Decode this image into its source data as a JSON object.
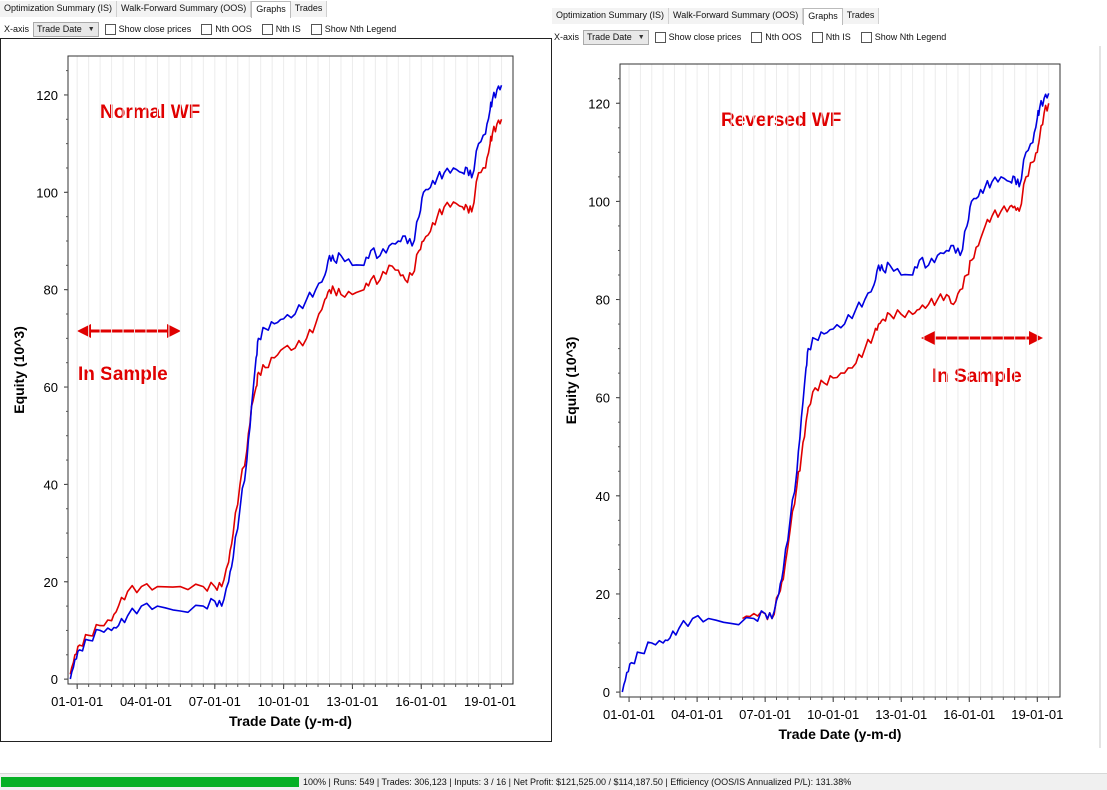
{
  "left": {
    "tabs": [
      "Optimization Summary (IS)",
      "Walk-Forward Summary (OOS)",
      "Graphs",
      "Trades"
    ],
    "active_tab": "Graphs",
    "toolbar": {
      "xaxis_label": "X-axis",
      "xaxis_value": "Trade Date",
      "show_close_prices": "Show close prices",
      "nth_oos": "Nth OOS",
      "nth_is": "Nth IS",
      "show_nth_legend": "Show Nth Legend"
    },
    "annotation_title": "Normal WF",
    "annotation_sample": "In Sample"
  },
  "right": {
    "tabs": [
      "Optimization Summary (IS)",
      "Walk-Forward Summary (OOS)",
      "Graphs",
      "Trades"
    ],
    "active_tab": "Graphs",
    "toolbar": {
      "xaxis_label": "X-axis",
      "xaxis_value": "Trade Date",
      "show_close_prices": "Show close prices",
      "nth_oos": "Nth OOS",
      "nth_is": "Nth IS",
      "show_nth_legend": "Show Nth Legend"
    },
    "annotation_title": "Reversed WF",
    "annotation_sample": "In Sample"
  },
  "status": {
    "progress": 1.0,
    "text": "100%  | Runs: 549 | Trades: 306,123 | Inputs: 3 / 16 | Net Profit: $121,525.00 / $114,187.50 | Efficiency (OOS/IS Annualized P/L): 131.38%"
  },
  "colors": {
    "series_blue": "#0000e0",
    "series_red": "#e00000",
    "annotation": "#e00000",
    "progress": "#06b025"
  },
  "chart_data": [
    {
      "type": "line",
      "xlabel": "Trade Date (y-m-d)",
      "ylabel": "Equity (10^3)",
      "xticks": [
        "01-01-01",
        "04-01-01",
        "07-01-01",
        "10-01-01",
        "13-01-01",
        "16-01-01",
        "19-01-01"
      ],
      "yticks": [
        0,
        20,
        40,
        60,
        80,
        100,
        120
      ],
      "xlim": [
        2000.6,
        2020.0
      ],
      "ylim": [
        -1,
        128
      ],
      "grid": "vertical",
      "series": [
        {
          "color": "#0000e0",
          "x": [
            2000.7,
            2000.9,
            2001.1,
            2001.5,
            2002.0,
            2002.5,
            2002.8,
            2003.2,
            2003.8,
            2004.5,
            2005.5,
            2006.5,
            2007.0,
            2007.3,
            2007.6,
            2007.8,
            2008.1,
            2008.4,
            2008.6,
            2008.8,
            2008.9,
            2009.2,
            2009.6,
            2010.0,
            2010.5,
            2011.0,
            2011.4,
            2011.8,
            2012.0,
            2012.2,
            2012.5,
            2013.0,
            2013.5,
            2013.8,
            2014.2,
            2014.6,
            2015.0,
            2015.3,
            2015.6,
            2015.9,
            2016.1,
            2016.4,
            2016.7,
            2017.0,
            2017.4,
            2017.8,
            2018.0,
            2018.2,
            2018.5,
            2018.8,
            2019.0,
            2019.1,
            2019.3,
            2019.5
          ],
          "y": [
            0,
            4,
            6,
            8,
            10,
            10,
            11,
            13,
            15,
            15,
            14,
            15,
            16,
            15,
            20,
            25,
            35,
            45,
            56,
            66,
            70,
            72,
            73,
            74,
            75,
            78,
            80,
            83,
            87,
            86,
            87,
            85,
            85,
            88,
            87,
            89,
            90,
            91,
            89,
            95,
            100,
            101,
            103,
            104,
            105,
            104,
            105,
            103,
            110,
            112,
            117,
            119,
            121,
            122
          ]
        },
        {
          "color": "#e00000",
          "x": [
            2000.7,
            2000.9,
            2001.1,
            2001.5,
            2002.0,
            2002.5,
            2002.8,
            2003.2,
            2003.8,
            2004.5,
            2005.5,
            2006.5,
            2007.0,
            2007.3,
            2007.6,
            2007.8,
            2008.1,
            2008.4,
            2008.6,
            2008.8,
            2008.9,
            2009.2,
            2009.6,
            2010.0,
            2010.5,
            2011.0,
            2011.4,
            2011.8,
            2012.0,
            2012.2,
            2012.5,
            2013.0,
            2013.5,
            2013.8,
            2014.2,
            2014.6,
            2015.0,
            2015.3,
            2015.6,
            2015.9,
            2016.1,
            2016.4,
            2016.7,
            2017.0,
            2017.4,
            2017.8,
            2018.0,
            2018.2,
            2018.5,
            2018.8,
            2019.0,
            2019.1,
            2019.3,
            2019.5
          ],
          "y": [
            1,
            5,
            7,
            9,
            11,
            12,
            15,
            18,
            19,
            19,
            19,
            19,
            19,
            19,
            24,
            30,
            40,
            47,
            56,
            60,
            63,
            64,
            66,
            68,
            68,
            70,
            73,
            78,
            80,
            80,
            79,
            79,
            80,
            82,
            82,
            85,
            84,
            82,
            83,
            88,
            90,
            92,
            95,
            97,
            98,
            97,
            97,
            96,
            104,
            105,
            110,
            112,
            114,
            115
          ]
        }
      ]
    },
    {
      "type": "line",
      "xlabel": "Trade Date (y-m-d)",
      "ylabel": "Equity (10^3)",
      "xticks": [
        "01-01-01",
        "04-01-01",
        "07-01-01",
        "10-01-01",
        "13-01-01",
        "16-01-01",
        "19-01-01"
      ],
      "yticks": [
        0,
        20,
        40,
        60,
        80,
        100,
        120
      ],
      "xlim": [
        2000.6,
        2020.0
      ],
      "ylim": [
        -1,
        128
      ],
      "grid": "vertical",
      "series": [
        {
          "color": "#0000e0",
          "x": [
            2000.7,
            2000.9,
            2001.1,
            2001.5,
            2002.0,
            2002.5,
            2002.8,
            2003.2,
            2003.8,
            2004.5,
            2005.5,
            2006.5,
            2007.0,
            2007.3,
            2007.6,
            2007.8,
            2008.1,
            2008.4,
            2008.6,
            2008.8,
            2008.9,
            2009.2,
            2009.6,
            2010.0,
            2010.5,
            2011.0,
            2011.4,
            2011.8,
            2012.0,
            2012.2,
            2012.5,
            2013.0,
            2013.5,
            2013.8,
            2014.2,
            2014.6,
            2015.0,
            2015.3,
            2015.6,
            2015.9,
            2016.1,
            2016.4,
            2016.7,
            2017.0,
            2017.4,
            2017.8,
            2018.0,
            2018.2,
            2018.5,
            2018.8,
            2019.0,
            2019.1,
            2019.3,
            2019.5
          ],
          "y": [
            0,
            4,
            6,
            8,
            10,
            10,
            11,
            13,
            15,
            15,
            14,
            15,
            16,
            15,
            20,
            25,
            35,
            45,
            56,
            66,
            70,
            72,
            73,
            74,
            75,
            78,
            80,
            83,
            87,
            86,
            87,
            85,
            85,
            88,
            87,
            89,
            90,
            91,
            89,
            95,
            100,
            101,
            103,
            104,
            105,
            104,
            105,
            103,
            110,
            112,
            117,
            119,
            121,
            122
          ]
        },
        {
          "color": "#e00000",
          "x": [
            2006.0,
            2006.5,
            2007.0,
            2007.3,
            2007.6,
            2007.8,
            2008.1,
            2008.4,
            2008.6,
            2008.8,
            2008.9,
            2009.2,
            2009.6,
            2010.0,
            2010.5,
            2011.0,
            2011.4,
            2011.8,
            2012.0,
            2012.2,
            2012.5,
            2013.0,
            2013.5,
            2013.8,
            2014.2,
            2014.6,
            2015.0,
            2015.3,
            2015.6,
            2015.9,
            2016.1,
            2016.4,
            2016.7,
            2017.0,
            2017.4,
            2017.8,
            2018.0,
            2018.2,
            2018.5,
            2018.8,
            2019.0,
            2019.1,
            2019.3,
            2019.5
          ],
          "y": [
            15,
            16,
            16,
            15,
            20,
            23,
            33,
            42,
            48,
            55,
            58,
            62,
            63,
            64,
            65,
            67,
            70,
            73,
            75,
            76,
            77,
            77,
            77,
            78,
            79,
            80,
            81,
            79,
            82,
            85,
            88,
            91,
            95,
            97,
            98,
            99,
            99,
            98,
            105,
            108,
            110,
            113,
            118,
            120
          ]
        }
      ]
    }
  ]
}
